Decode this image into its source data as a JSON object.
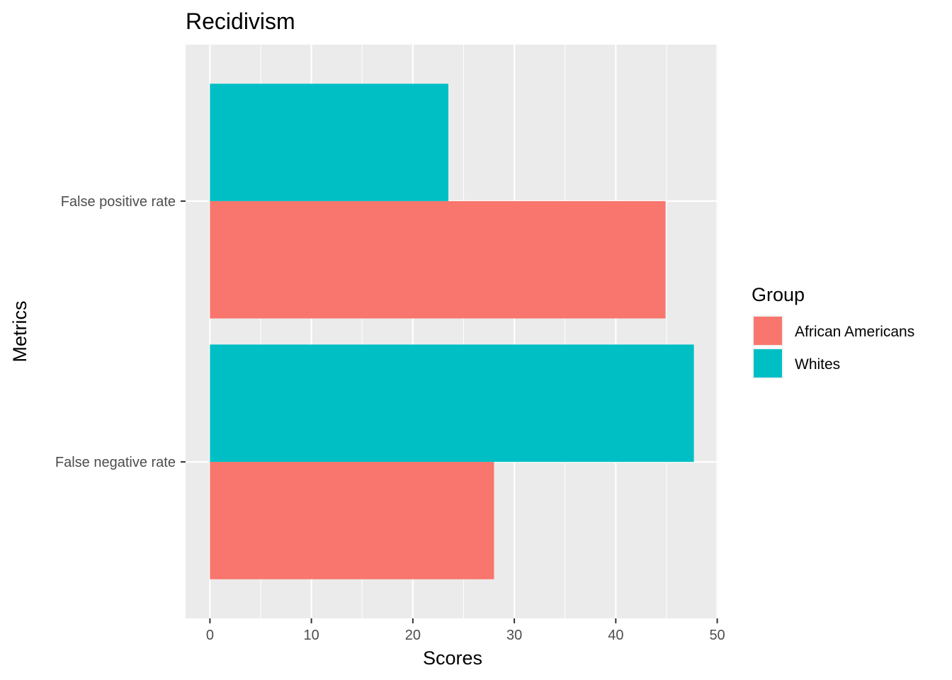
{
  "chart_data": {
    "type": "bar",
    "orientation": "horizontal",
    "title": "Recidivism",
    "xlabel": "Scores",
    "ylabel": "Metrics",
    "categories": [
      "False negative rate",
      "False positive rate"
    ],
    "series": [
      {
        "name": "African Americans",
        "color": "#F8766D",
        "values": [
          28,
          44.9
        ]
      },
      {
        "name": "Whites",
        "color": "#00BFC4",
        "values": [
          47.7,
          23.5
        ]
      }
    ],
    "xlim": [
      -2.4,
      50.1
    ],
    "xticks": [
      0,
      10,
      20,
      30,
      40,
      50
    ],
    "grid": true,
    "legend": {
      "title": "Group",
      "position": "right"
    }
  }
}
